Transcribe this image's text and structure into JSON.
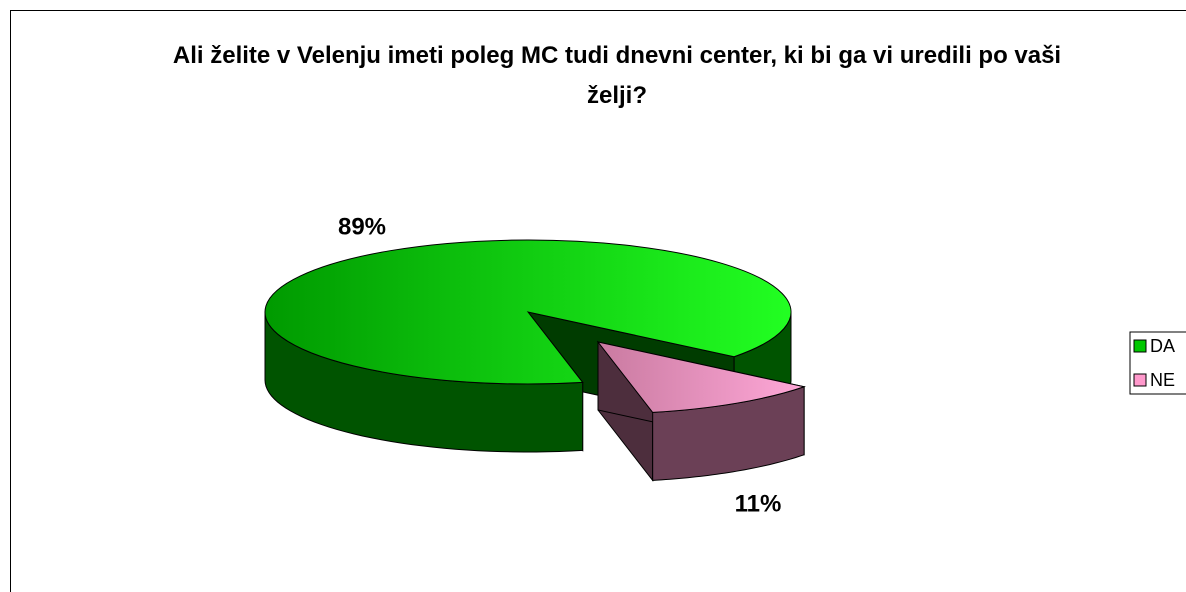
{
  "chart_data": {
    "type": "pie",
    "title": "Ali želite v Velenju imeti poleg MC tudi dnevni center, ki bi ga vi uredili po vaši želji?",
    "categories": [
      "DA",
      "NE"
    ],
    "values": [
      89,
      11
    ],
    "value_labels": [
      "89%",
      "11%"
    ],
    "colors": [
      "#00c800",
      "#ff99cc"
    ],
    "legend": "right"
  }
}
